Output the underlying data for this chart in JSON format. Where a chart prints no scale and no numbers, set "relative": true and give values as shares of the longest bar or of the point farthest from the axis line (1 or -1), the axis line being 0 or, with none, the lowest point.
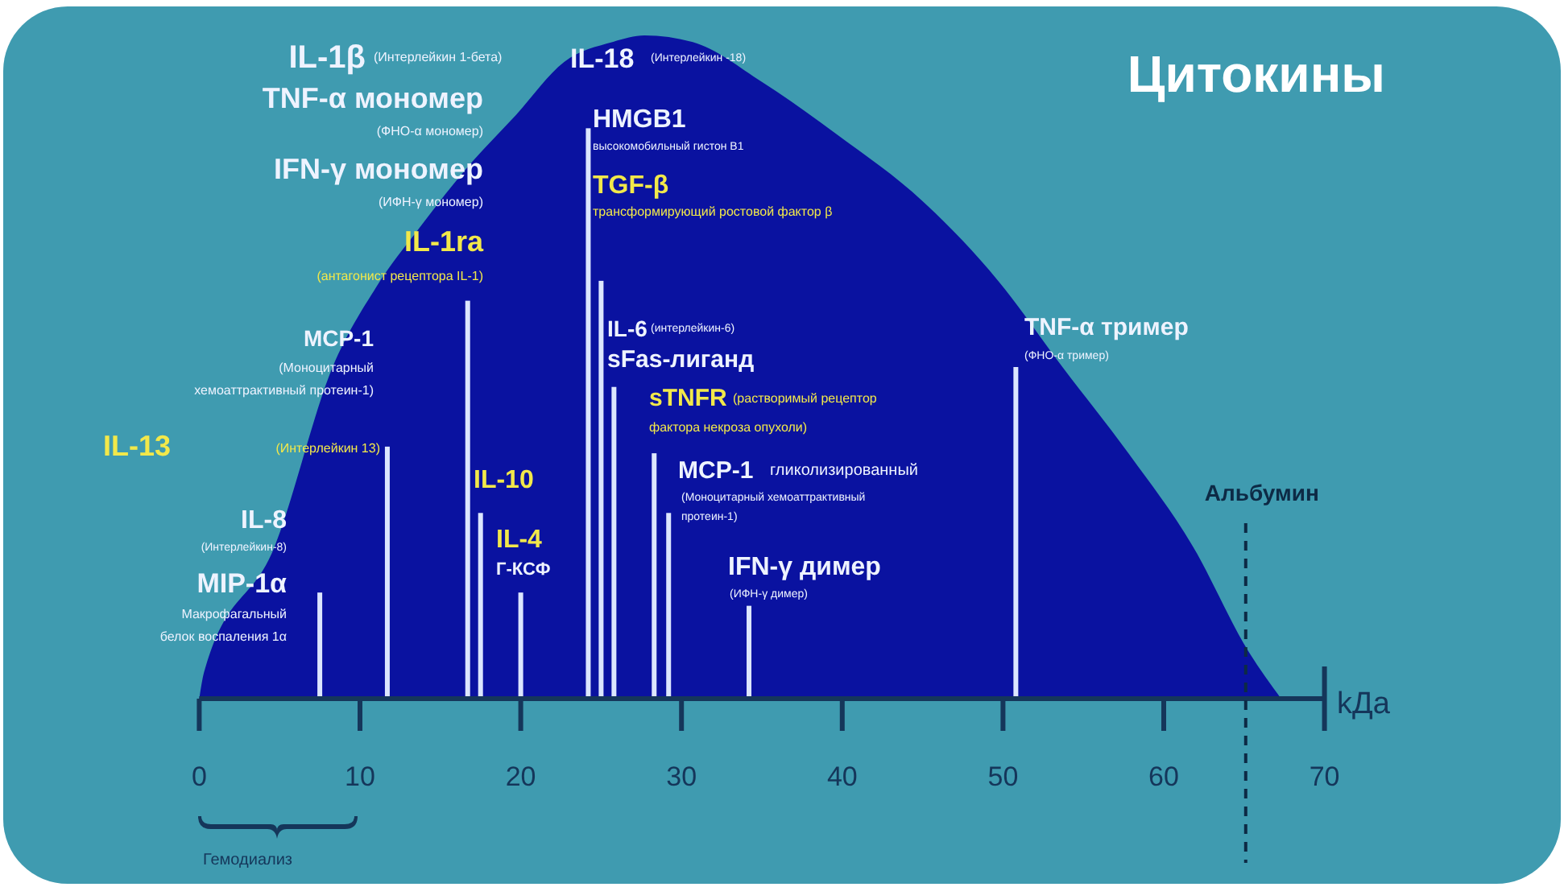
{
  "chart_data": {
    "type": "bar",
    "title": "Цитокины",
    "xlabel": "kДа",
    "relative": true,
    "xlim": [
      0,
      70
    ],
    "xticks": [
      0,
      10,
      20,
      30,
      40,
      50,
      60,
      70
    ],
    "series": [
      {
        "type": "area",
        "color": "#0a12a0",
        "x": [
          0,
          0.3,
          4.7,
          8.3,
          11,
          13.7,
          17,
          19.7,
          22.7,
          25.7,
          27.7,
          30.7,
          35,
          39.7,
          45,
          49.7,
          53.7,
          57.8,
          61.8,
          65.3,
          67.3
        ],
        "values": [
          0,
          0.04,
          0.23,
          0.5,
          0.62,
          0.71,
          0.81,
          0.88,
          0.96,
          0.99,
          1,
          0.99,
          0.93,
          0.85,
          0.75,
          0.63,
          0.5,
          0.37,
          0.23,
          0.07,
          0
        ]
      },
      {
        "color": "#dce6ff",
        "x": [
          7.5,
          11.7,
          16.7,
          17.5,
          20.0,
          24.2,
          25.0,
          25.8,
          28.3,
          29.2,
          34.2,
          50.8
        ],
        "values": [
          0.16,
          0.38,
          0.6,
          0.28,
          0.16,
          0.86,
          0.63,
          0.47,
          0.37,
          0.28,
          0.14,
          0.5
        ]
      }
    ],
    "ref_lines": [
      {
        "axis": "x",
        "value": 65.1,
        "label": "Альбумин",
        "color": "#0d2a45",
        "line_style": "dashed"
      }
    ],
    "annotations": [
      "IL-1β",
      "(Интерлейкин 1-бета)",
      "TNF-α мономер",
      "(ФНО-α мономер)",
      "IFN-γ мономер",
      "(ИФН-γ мономер)",
      "IL-1ra",
      "(антагонист рецептора IL-1)",
      "MCP-1",
      "(Моноцитарный\nхемоаттрактивный протеин-1)",
      "IL-13",
      "(Интерлейкин 13)",
      "IL-8",
      "(Интерлейкин-8)",
      "MIP-1α",
      "Макрофагальный\nбелок воспаления 1α",
      "IL-10",
      "IL-4",
      "Г-КСФ",
      "IL-18",
      "(Интерлейкин -18)",
      "HMGB1",
      "высокомобильный гистон B1",
      "TGF-β",
      "трансформирующий ростовой фактор β",
      "IL-6",
      "(интерлейкин-6)",
      "sFas-лиганд",
      "sTNFR",
      "(растворимый рецептор",
      "фактора некроза опухоли)",
      "MCP-1",
      "гликолизированный",
      "(Моноцитарный хемоаттрактивный\nпротеин-1)",
      "IFN-γ димер",
      "(ИФН-γ димер)",
      "TNF-α тример",
      "(ФНО-α тример)",
      "Гемодиализ"
    ]
  }
}
